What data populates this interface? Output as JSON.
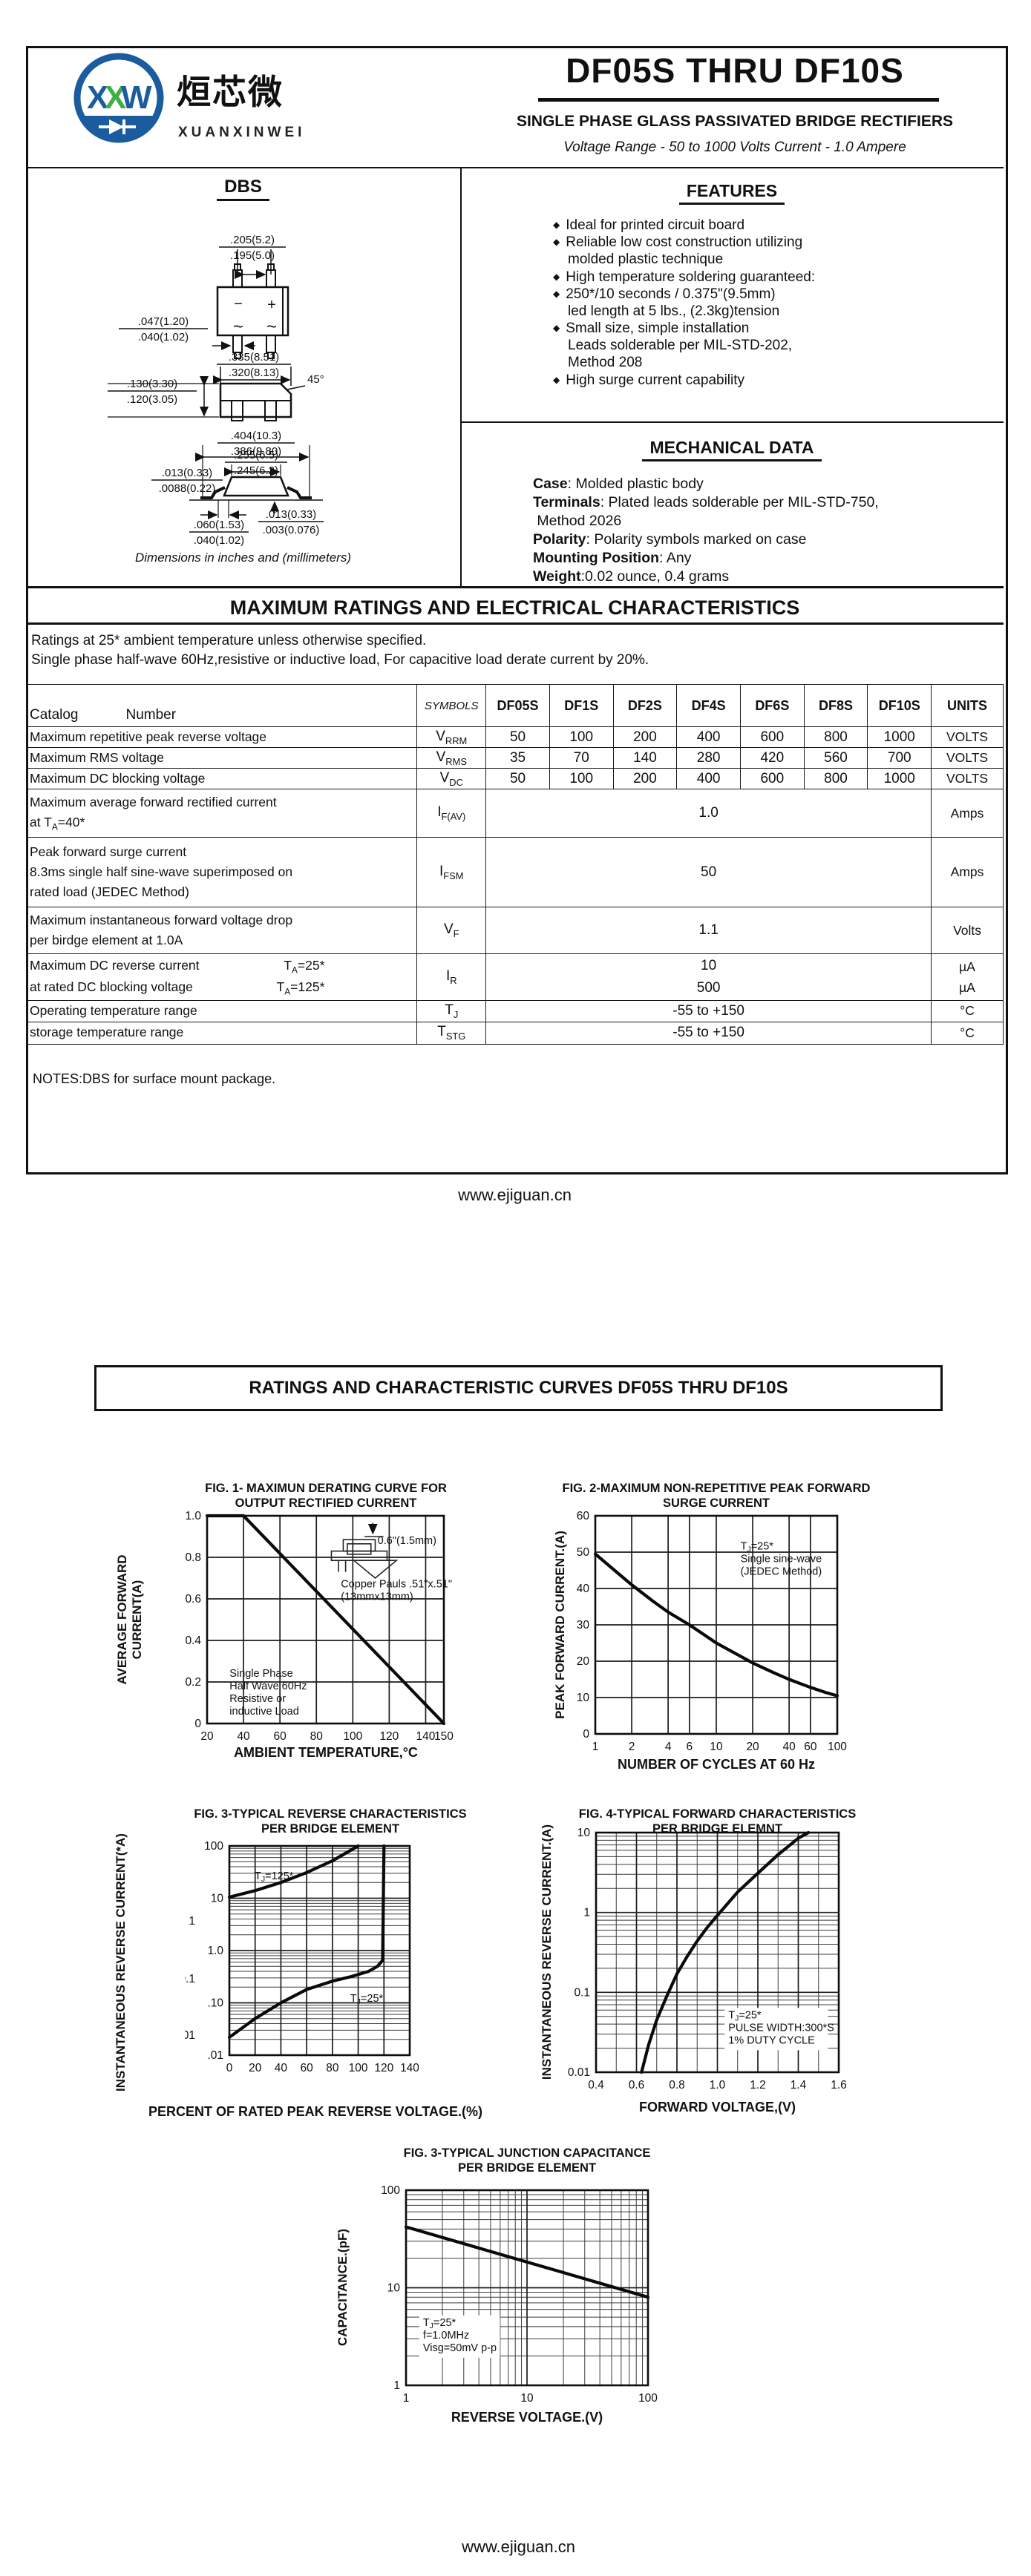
{
  "brand": {
    "monogram": "XXW",
    "name_cn": "烜芯微",
    "name_en": "XUANXINWEI",
    "blue": "#1a5c9e",
    "green": "#3fae49"
  },
  "header": {
    "title": "DF05S THRU DF10S",
    "subtitle": "SINGLE PHASE GLASS PASSIVATED BRIDGE RECTIFIERS",
    "range_line": "Voltage Range - 50 to 1000 Volts    Current -  1.0 Ampere"
  },
  "package": {
    "name": "DBS",
    "minus": "−",
    "plus": "+",
    "ac": "~",
    "angle": "45°",
    "dims": [
      {
        "top": ".205(5.2)",
        "bot": ".195(5.0)"
      },
      {
        "top": ".047(1.20)",
        "bot": ".040(1.02)"
      },
      {
        "top": ".335(8.51)",
        "bot": ".320(8.13)"
      },
      {
        "top": ".130(3.30)",
        "bot": ".120(3.05)"
      },
      {
        "top": ".404(10.3)",
        "bot": ".386(9.80)"
      },
      {
        "top": ".255(6.5)",
        "bot": ".245(6.2)"
      },
      {
        "top": ".013(0.33)",
        "bot": ".0088(0.22)"
      },
      {
        "top": ".060(1.53)",
        "bot": ".040(1.02)"
      },
      {
        "top": ".013(0.33)",
        "bot": ".003(0.076)"
      }
    ],
    "note": "Dimensions in inches and (millimeters)"
  },
  "features": {
    "title": "FEATURES",
    "bullet": "◆",
    "items": [
      [
        "Ideal for printed circuit board"
      ],
      [
        "Reliable low cost construction utilizing",
        "molded plastic technique"
      ],
      [
        "High temperature soldering guaranteed:"
      ],
      [
        "250*/10 seconds / 0.375\"(9.5mm)",
        "led length at 5 lbs., (2.3kg)tension"
      ],
      [
        "Small size, simple installation",
        "Leads solderable per MIL-STD-202,",
        "Method 208"
      ],
      [
        "High surge current capability"
      ]
    ]
  },
  "mechanical": {
    "title": "MECHANICAL DATA",
    "rows": [
      {
        "key": "Case",
        "val": ": Molded plastic body"
      },
      {
        "key": "Terminals",
        "val": ": Plated leads solderable per MIL-STD-750,\n Method 2026"
      },
      {
        "key": "Polarity",
        "val": ": Polarity symbols marked on case"
      },
      {
        "key": "Mounting Position",
        "val": ": Any"
      },
      {
        "key": "Weight",
        "val": ":0.02 ounce, 0.4 grams"
      }
    ]
  },
  "ratings": {
    "title": "MAXIMUM RATINGS AND ELECTRICAL CHARACTERISTICS",
    "note1": "Ratings at 25* ambient temperature unless otherwise specified.",
    "note2": "Single phase half-wave 60Hz,resistive or inductive load, For capacitive load derate current by 20%.",
    "table": {
      "catalog_label": "Catalog",
      "number_label": "Number",
      "symbols_header": "SYMBOLS",
      "parts": [
        "DF05S",
        "DF1S",
        "DF2S",
        "DF4S",
        "DF6S",
        "DF8S",
        "DF10S"
      ],
      "units_header": "UNITS",
      "rows": [
        {
          "label": [
            "Maximum repetitive peak reverse voltage"
          ],
          "symbol": "V~RRM~",
          "values": [
            "50",
            "100",
            "200",
            "400",
            "600",
            "800",
            "1000"
          ],
          "unit": "VOLTS"
        },
        {
          "label": [
            "Maximum RMS voltage"
          ],
          "symbol": "V~RMS~",
          "values": [
            "35",
            "70",
            "140",
            "280",
            "420",
            "560",
            "700"
          ],
          "unit": "VOLTS"
        },
        {
          "label": [
            "Maximum DC blocking voltage"
          ],
          "symbol": "V~DC~",
          "values": [
            "50",
            "100",
            "200",
            "400",
            "600",
            "800",
            "1000"
          ],
          "unit": "VOLTS"
        },
        {
          "label": [
            "Maximum average forward rectified current",
            "at T~A~=40*"
          ],
          "symbol": "I~F(AV)~",
          "span": "1.0",
          "unit": "Amps"
        },
        {
          "label": [
            "Peak forward surge current",
            "8.3ms single half sine-wave superimposed on",
            "rated load (JEDEC Method)"
          ],
          "symbol": "I~FSM~",
          "span": "50",
          "unit": "Amps"
        },
        {
          "label": [
            "Maximum instantaneous forward voltage drop",
            "per birdge element at 1.0A"
          ],
          "symbol": "V~F~",
          "span": "1.1",
          "unit": "Volts"
        },
        {
          "label": [
            "Maximum DC reverse current",
            "at rated DC blocking voltage"
          ],
          "cond": [
            "T~A~=25*",
            "T~A~=125*"
          ],
          "symbol": "I~R~",
          "span2": [
            "10",
            "500"
          ],
          "unit2": [
            "µA",
            "µA"
          ]
        },
        {
          "label": [
            "Operating temperature range"
          ],
          "symbol": "T~J~",
          "span": "-55 to +150",
          "unit": "°C"
        },
        {
          "label": [
            "storage temperature range"
          ],
          "symbol": "T~STG~",
          "span": "-55 to +150",
          "unit": "°C"
        }
      ]
    },
    "notes": "NOTES:DBS for surface mount package."
  },
  "footer": {
    "url": "www.ejiguan.cn"
  },
  "page2": {
    "title": "RATINGS AND CHARACTERISTIC CURVES DF05S THRU DF10S"
  },
  "chart_data": [
    {
      "id": "fig1",
      "type": "line",
      "title": [
        "FIG. 1- MAXIMUN DERATING CURVE FOR",
        "OUTPUT RECTIFIED CURRENT"
      ],
      "xlabel": "AMBIENT TEMPERATURE,°C",
      "ylabel": "AVERAGE  FORWARD  CURRENT(A)",
      "x": {
        "scale": "linear",
        "min": 20,
        "max": 150,
        "ticks": [
          20,
          40,
          60,
          80,
          100,
          120,
          140,
          150
        ],
        "tick_labels": [
          "20",
          "40",
          "60",
          "80",
          "100",
          "120",
          "140",
          "150"
        ]
      },
      "y": {
        "scale": "linear",
        "min": 0,
        "max": 1.0,
        "ticks": [
          0,
          0.2,
          0.4,
          0.6,
          0.8,
          1.0
        ],
        "tick_labels": [
          "0",
          "0.2",
          "0.4",
          "0.6",
          "0.8",
          "1.0"
        ]
      },
      "grid": true,
      "legend_position": "none",
      "inset": "copper-pad",
      "series": [
        {
          "name": "derating-curve",
          "points": [
            [
              20,
              1.0
            ],
            [
              40,
              1.0
            ],
            [
              150,
              0
            ]
          ]
        }
      ],
      "annotations": [
        {
          "lines": [
            "0.6\"(1.5mm)"
          ],
          "x": 0.72,
          "y": 0.135
        },
        {
          "lines": [
            "Copper Pauls .51\"x.51\"",
            "(13mmx13mm)"
          ],
          "x": 0.565,
          "y": 0.345
        },
        {
          "lines": [
            "Single Phase",
            "Half Wave 60Hz",
            "Resistive or",
            "inductive Load"
          ],
          "x": 0.095,
          "y": 0.775
        }
      ]
    },
    {
      "id": "fig2",
      "type": "line",
      "title": [
        "FIG. 2-MAXIMUM NON-REPETITIVE PEAK FORWARD",
        "SURGE CURRENT"
      ],
      "xlabel": "NUMBER OF CYCLES AT 60 Hz",
      "ylabel": "PEAK  FORWARD CURRENT.(A)",
      "x": {
        "scale": "log",
        "min": 1,
        "max": 100,
        "ticks": [
          1,
          2,
          4,
          6,
          10,
          20,
          40,
          60,
          100
        ],
        "tick_labels": [
          "1",
          "2",
          "4",
          "6",
          "10",
          "20",
          "40",
          "60",
          "100"
        ]
      },
      "y": {
        "scale": "linear",
        "min": 0,
        "max": 60,
        "ticks": [
          0,
          10,
          20,
          30,
          40,
          50,
          60
        ],
        "tick_labels": [
          "0",
          "10",
          "20",
          "30",
          "40",
          "50",
          "60"
        ]
      },
      "grid": true,
      "legend_position": "none",
      "series": [
        {
          "name": "surge-current",
          "points": [
            [
              1,
              49.5
            ],
            [
              1.5,
              44.5
            ],
            [
              2,
              41
            ],
            [
              3,
              36.5
            ],
            [
              4,
              33.5
            ],
            [
              6,
              30
            ],
            [
              8,
              27.2
            ],
            [
              10,
              25
            ],
            [
              15,
              21.8
            ],
            [
              20,
              19.5
            ],
            [
              30,
              16.8
            ],
            [
              40,
              15
            ],
            [
              60,
              12.8
            ],
            [
              80,
              11.4
            ],
            [
              100,
              10.5
            ]
          ]
        }
      ],
      "annotations": [
        {
          "lines": [
            "T~J~=25*",
            "Single sine-wave",
            "(JEDEC Method)"
          ],
          "x": 0.6,
          "y": 0.155
        }
      ]
    },
    {
      "id": "fig3",
      "type": "line",
      "title": [
        "FIG. 3-TYPICAL REVERSE CHARACTERISTICS",
        "PER BRIDGE ELEMENT"
      ],
      "xlabel": "PERCENT OF RATED PEAK REVERSE VOLTAGE.(%)",
      "ylabel": "INSTANTANEOUS REVERSE CURRENT(*A)",
      "x": {
        "scale": "linear",
        "min": 0,
        "max": 140,
        "ticks": [
          0,
          20,
          40,
          60,
          80,
          100,
          120,
          140
        ],
        "tick_labels": [
          "0",
          "20",
          "40",
          "60",
          "80",
          "100",
          "120",
          "140"
        ]
      },
      "y": {
        "scale": "log",
        "min": 0.01,
        "max": 100,
        "ticks": [
          100,
          10,
          1,
          0.1,
          0.01
        ],
        "tick_labels": [
          "100",
          "10",
          "1.0",
          ".10",
          ".01"
        ],
        "minor": true
      },
      "y2_labels": [
        {
          "label": "1",
          "v": 3.7
        },
        {
          "label": "0.1",
          "v": 0.29
        },
        {
          "label": "0.01",
          "v": 0.024
        }
      ],
      "grid": true,
      "legend_position": "none",
      "series": [
        {
          "name": "TJ=125",
          "points": [
            [
              0,
              10.5
            ],
            [
              20,
              14
            ],
            [
              40,
              20
            ],
            [
              60,
              31
            ],
            [
              80,
              52
            ],
            [
              100,
              100
            ]
          ]
        },
        {
          "name": "TJ=25",
          "points": [
            [
              0,
              0.022
            ],
            [
              20,
              0.05
            ],
            [
              40,
              0.1
            ],
            [
              60,
              0.18
            ],
            [
              80,
              0.26
            ],
            [
              95,
              0.32
            ],
            [
              108,
              0.4
            ],
            [
              115,
              0.5
            ],
            [
              119,
              0.65
            ],
            [
              120,
              100
            ]
          ]
        }
      ],
      "annotations": [
        {
          "lines": [
            "T~J~=125*"
          ],
          "x": 0.14,
          "y": 0.16
        },
        {
          "lines": [
            "T~J~=25*"
          ],
          "x": 0.67,
          "y": 0.745
        }
      ]
    },
    {
      "id": "fig4",
      "type": "line",
      "title": [
        "FIG. 4-TYPICAL FORWARD CHARACTERISTICS",
        "PER BRIDGE ELEMNT"
      ],
      "xlabel": "FORWARD VOLTAGE,(V)",
      "ylabel": "INSTANTANEOUS REVERSE CURRENT.(A)",
      "x": {
        "scale": "linear",
        "min": 0.4,
        "max": 1.6,
        "ticks": [
          0.4,
          0.6,
          0.8,
          1.0,
          1.2,
          1.4,
          1.6
        ],
        "tick_labels": [
          "0.4",
          "0.6",
          "0.8",
          "1.0",
          "1.2",
          "1.4",
          "1.6"
        ],
        "minor_step": 0.1
      },
      "y": {
        "scale": "log",
        "min": 0.01,
        "max": 10,
        "ticks": [
          10,
          1,
          0.1,
          0.01
        ],
        "tick_labels": [
          "10",
          "1",
          "0.1",
          "0.01"
        ],
        "minor": true
      },
      "grid": true,
      "legend_position": "none",
      "series": [
        {
          "name": "forward-vf",
          "points": [
            [
              0.625,
              0.01
            ],
            [
              0.66,
              0.022
            ],
            [
              0.7,
              0.045
            ],
            [
              0.75,
              0.09
            ],
            [
              0.8,
              0.17
            ],
            [
              0.85,
              0.28
            ],
            [
              0.9,
              0.44
            ],
            [
              0.95,
              0.65
            ],
            [
              1.0,
              0.92
            ],
            [
              1.1,
              1.8
            ],
            [
              1.2,
              3.1
            ],
            [
              1.3,
              5.3
            ],
            [
              1.4,
              8.5
            ],
            [
              1.45,
              10
            ]
          ]
        }
      ],
      "annotations": [
        {
          "lines": [
            "T~J~=25*",
            "PULSE WIDTH:300*S",
            "1% DUTY CYCLE"
          ],
          "x": 0.545,
          "y": 0.775,
          "box": true
        }
      ]
    },
    {
      "id": "fig5",
      "type": "line",
      "title": [
        "FIG. 3-TYPICAL JUNCTION CAPACITANCE",
        "PER BRIDGE ELEMENT"
      ],
      "xlabel": "REVERSE VOLTAGE.(V)",
      "ylabel": "CAPACITANCE.(pF)",
      "x": {
        "scale": "log",
        "min": 1,
        "max": 100,
        "ticks": [
          1,
          10,
          100
        ],
        "tick_labels": [
          "1",
          "10",
          "100"
        ],
        "minor": true
      },
      "y": {
        "scale": "log",
        "min": 1,
        "max": 100,
        "ticks": [
          100,
          10,
          1
        ],
        "tick_labels": [
          "100",
          "10",
          "1"
        ],
        "minor": true
      },
      "grid": true,
      "legend_position": "none",
      "series": [
        {
          "name": "junction-capacitance",
          "points": [
            [
              1,
              42
            ],
            [
              100,
              8
            ]
          ]
        }
      ],
      "annotations": [
        {
          "lines": [
            "T~J~=25*",
            "f=1.0MHz",
            "Visg=50mV p-p"
          ],
          "x": 0.07,
          "y": 0.695,
          "box": true
        }
      ]
    }
  ]
}
